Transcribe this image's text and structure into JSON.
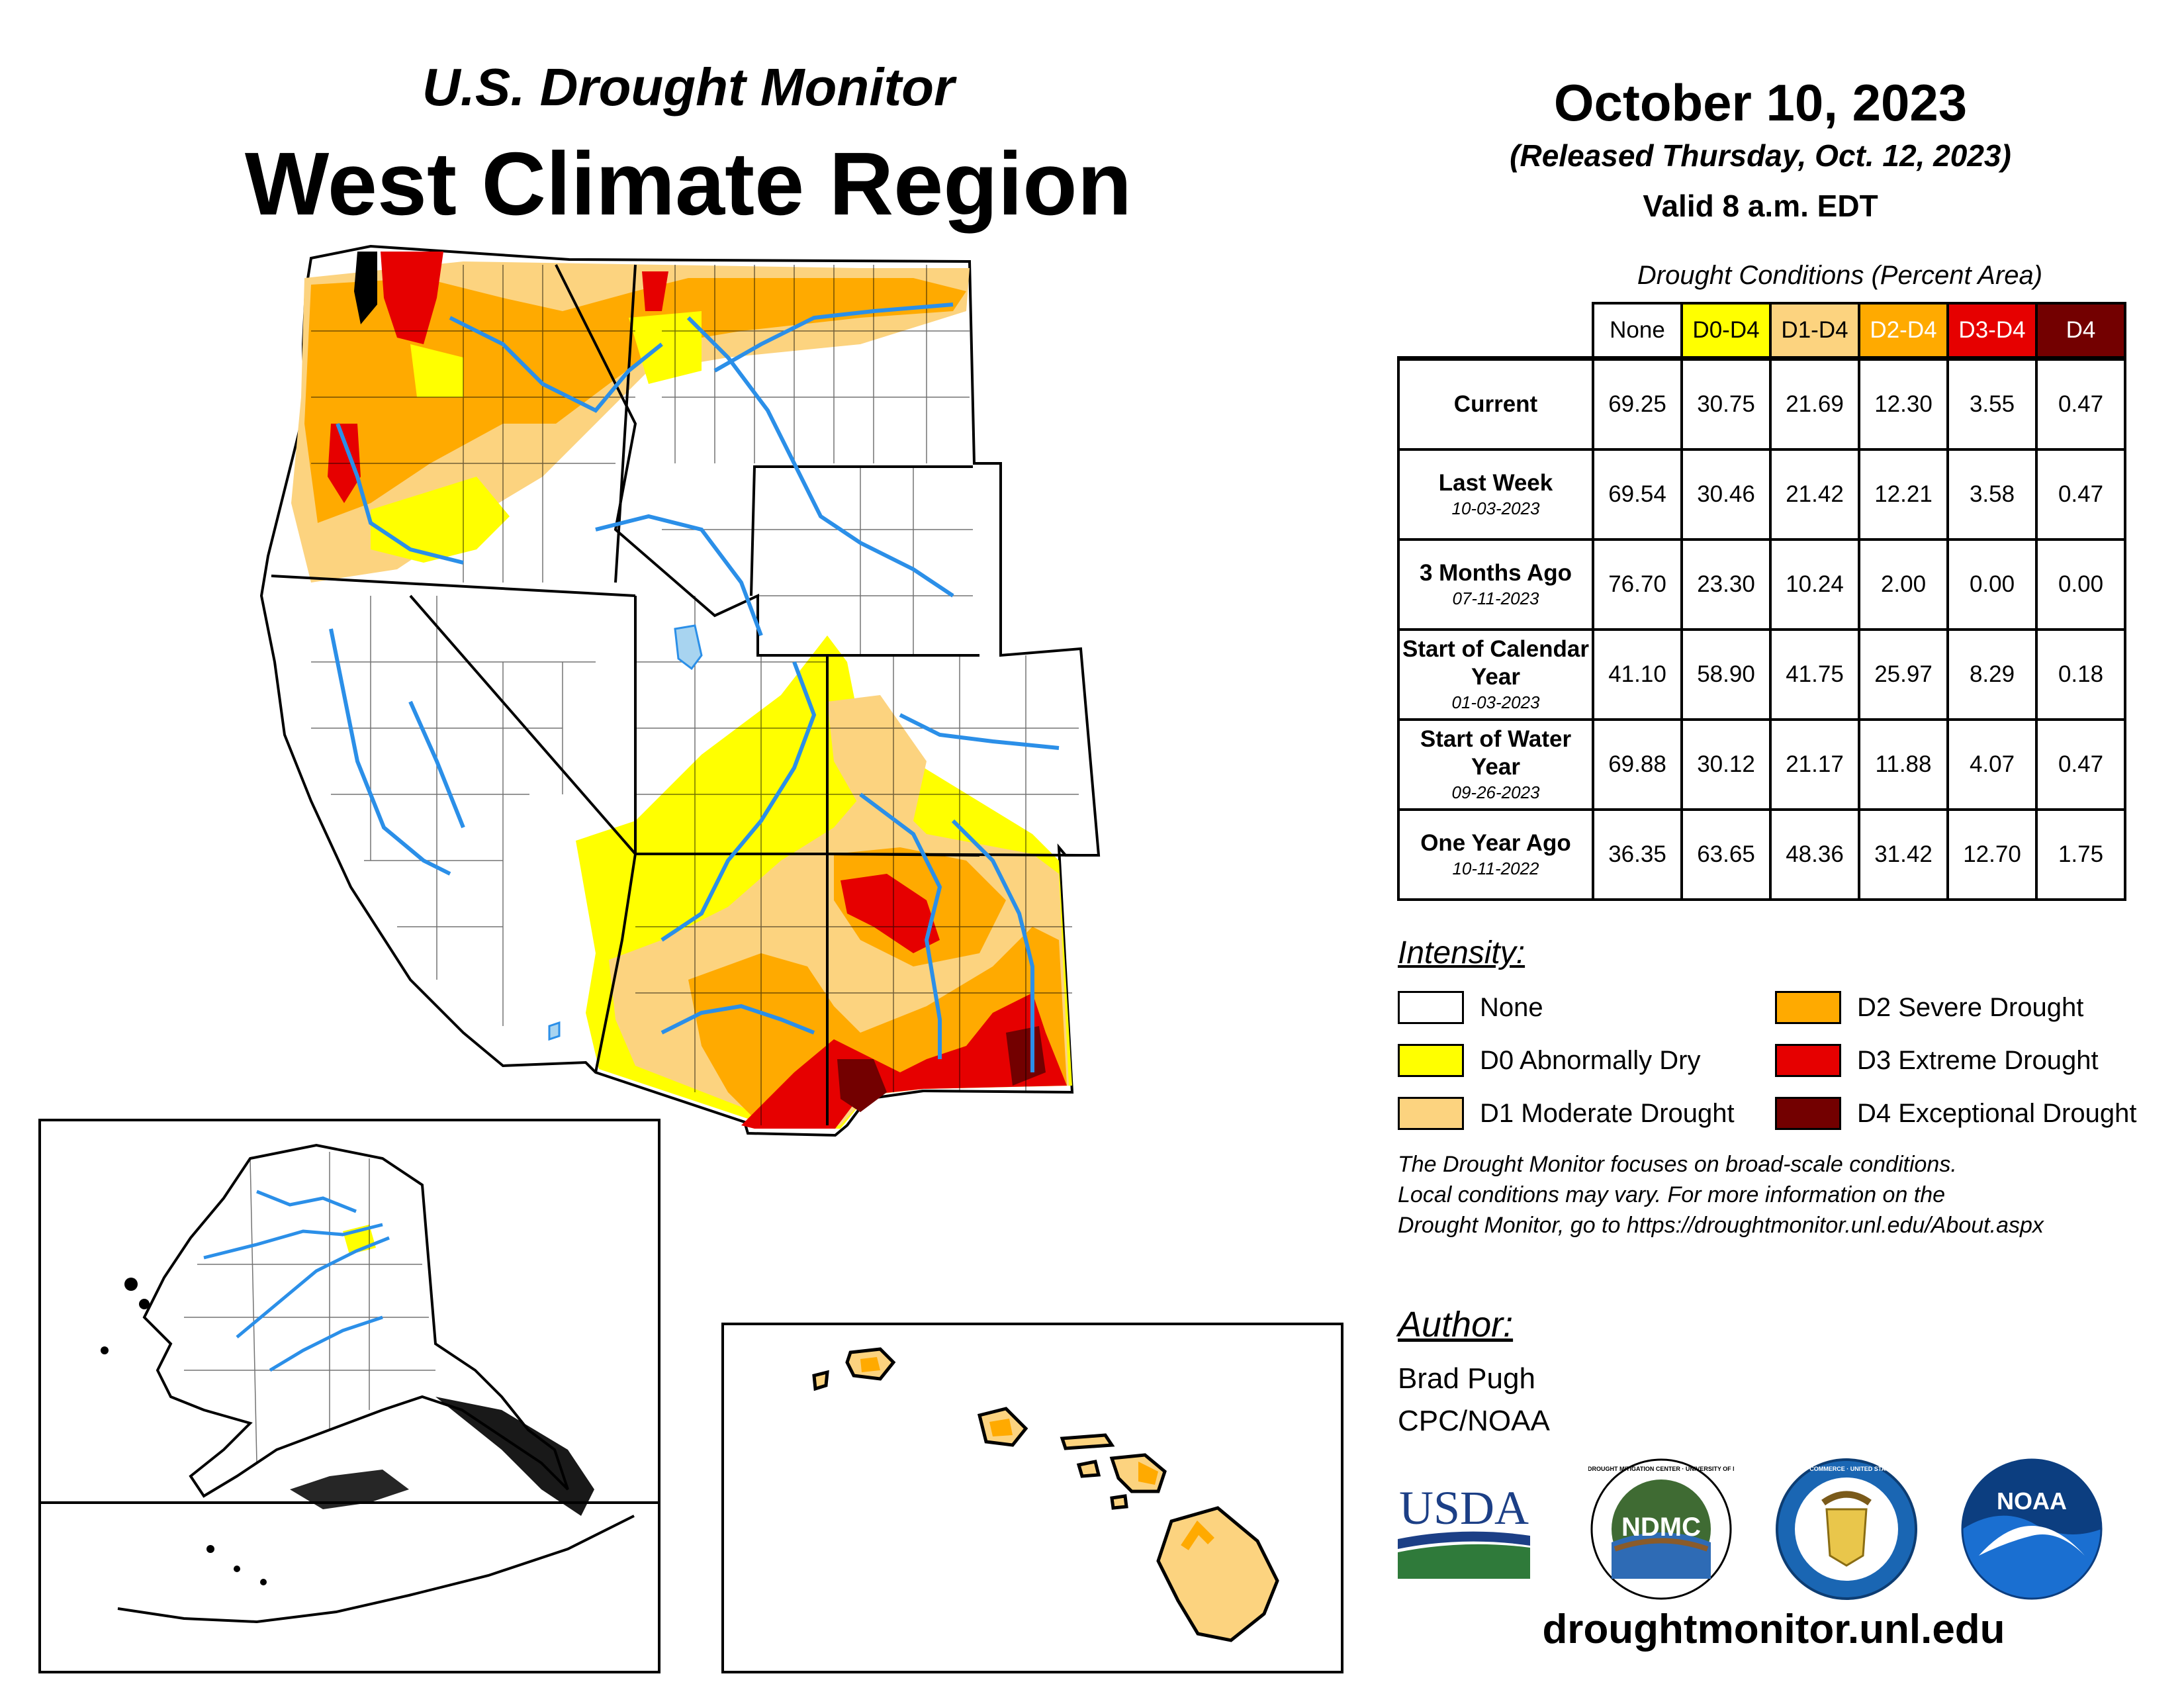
{
  "header": {
    "subtitle": "U.S. Drought Monitor",
    "region_title": "West Climate Region",
    "map_date": "October 10, 2023",
    "released": "(Released Thursday, Oct. 12, 2023)",
    "valid": "Valid 8 a.m. EDT"
  },
  "table": {
    "caption": "Drought Conditions (Percent Area)",
    "columns": [
      {
        "label": "None",
        "bg": "#ffffff",
        "fg": "#000000"
      },
      {
        "label": "D0-D4",
        "bg": "#ffff00",
        "fg": "#000000"
      },
      {
        "label": "D1-D4",
        "bg": "#fcd37f",
        "fg": "#000000"
      },
      {
        "label": "D2-D4",
        "bg": "#ffaa00",
        "fg": "#ffffff"
      },
      {
        "label": "D3-D4",
        "bg": "#e60000",
        "fg": "#ffffff"
      },
      {
        "label": "D4",
        "bg": "#730000",
        "fg": "#ffffff"
      }
    ],
    "rows": [
      {
        "label": "Current",
        "date": "",
        "values": [
          "69.25",
          "30.75",
          "21.69",
          "12.30",
          "3.55",
          "0.47"
        ]
      },
      {
        "label": "Last Week",
        "date": "10-03-2023",
        "values": [
          "69.54",
          "30.46",
          "21.42",
          "12.21",
          "3.58",
          "0.47"
        ]
      },
      {
        "label": "3 Months Ago",
        "date": "07-11-2023",
        "values": [
          "76.70",
          "23.30",
          "10.24",
          "2.00",
          "0.00",
          "0.00"
        ]
      },
      {
        "label": "Start of Calendar Year",
        "date": "01-03-2023",
        "values": [
          "41.10",
          "58.90",
          "41.75",
          "25.97",
          "8.29",
          "0.18"
        ]
      },
      {
        "label": "Start of Water Year",
        "date": "09-26-2023",
        "values": [
          "69.88",
          "30.12",
          "21.17",
          "11.88",
          "4.07",
          "0.47"
        ]
      },
      {
        "label": "One Year Ago",
        "date": "10-11-2022",
        "values": [
          "36.35",
          "63.65",
          "48.36",
          "31.42",
          "12.70",
          "1.75"
        ]
      }
    ]
  },
  "legend": {
    "title": "Intensity:",
    "items": [
      {
        "label": "None",
        "color": "#ffffff"
      },
      {
        "label": "D0 Abnormally Dry",
        "color": "#ffff00"
      },
      {
        "label": "D1 Moderate Drought",
        "color": "#fcd37f"
      },
      {
        "label": "D2 Severe Drought",
        "color": "#ffaa00"
      },
      {
        "label": "D3 Extreme Drought",
        "color": "#e60000"
      },
      {
        "label": "D4 Exceptional Drought",
        "color": "#730000"
      }
    ]
  },
  "note": {
    "line1": "The Drought Monitor focuses on broad-scale conditions.",
    "line2": "Local conditions may vary. For more information on the",
    "line3": "Drought Monitor, go to https://droughtmonitor.unl.edu/About.aspx"
  },
  "author": {
    "title": "Author:",
    "name": "Brad Pugh",
    "org": "CPC/NOAA"
  },
  "logos": {
    "usda": "USDA",
    "ndmc": "NDMC",
    "ndmc_ring": "NATIONAL DROUGHT MITIGATION CENTER · UNIVERSITY OF NEBRASKA",
    "doc_ring": "DEPARTMENT OF COMMERCE · UNITED STATES OF AMERICA",
    "noaa": "NOAA"
  },
  "footer": {
    "url": "droughtmonitor.unl.edu"
  },
  "colors": {
    "river": "#2b8fe8",
    "lake": "#a8d4f0",
    "outline": "#000000"
  }
}
